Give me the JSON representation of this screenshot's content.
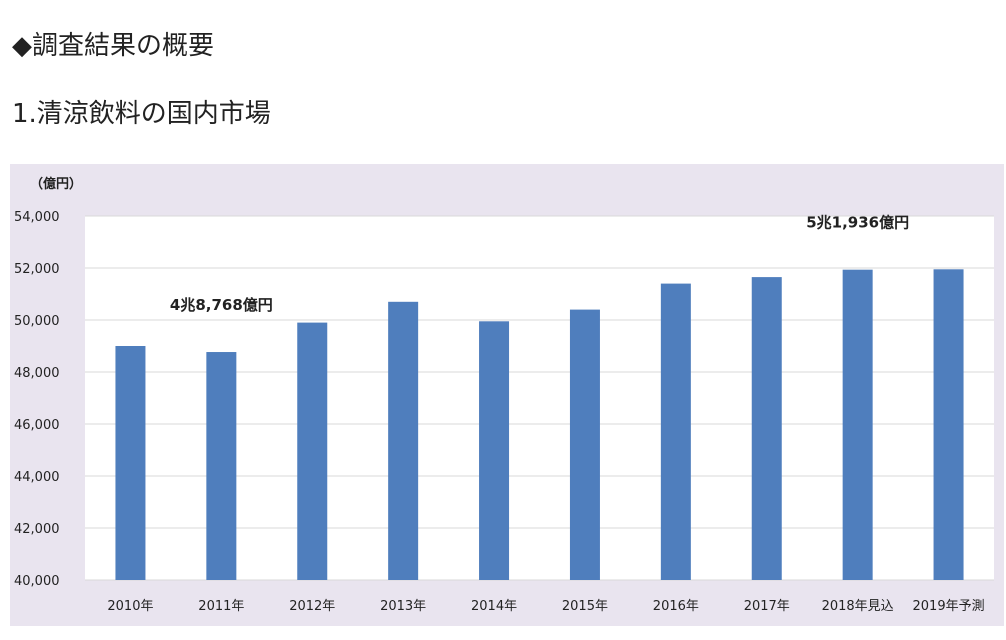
{
  "page": {
    "heading": "◆調査結果の概要",
    "subheading": "1.清涼飲料の国内市場"
  },
  "colors": {
    "bar": "#4f7ebd",
    "panel": "#e9e4ef",
    "plot": "#ffffff",
    "grid": "#d9d9d9"
  },
  "chart_data": {
    "type": "bar",
    "title": "",
    "xlabel": "",
    "ylabel": "",
    "unit_label": "（億円）",
    "categories": [
      "2010年",
      "2011年",
      "2012年",
      "2013年",
      "2014年",
      "2015年",
      "2016年",
      "2017年",
      "2018年見込",
      "2019年予測"
    ],
    "values": [
      49000,
      48768,
      49900,
      50700,
      49950,
      50400,
      51400,
      51650,
      51936,
      51950
    ],
    "ylim": [
      40000,
      54000
    ],
    "yticks": [
      40000,
      42000,
      44000,
      46000,
      48000,
      50000,
      52000,
      54000
    ],
    "ytick_labels": [
      "40,000",
      "42,000",
      "44,000",
      "46,000",
      "48,000",
      "50,000",
      "52,000",
      "54,000"
    ],
    "grid": true,
    "legend": "none",
    "annotations": [
      {
        "category_index": 1,
        "text": "4兆8,768億円"
      },
      {
        "category_index": 8,
        "text": "5兆1,936億円"
      }
    ]
  }
}
